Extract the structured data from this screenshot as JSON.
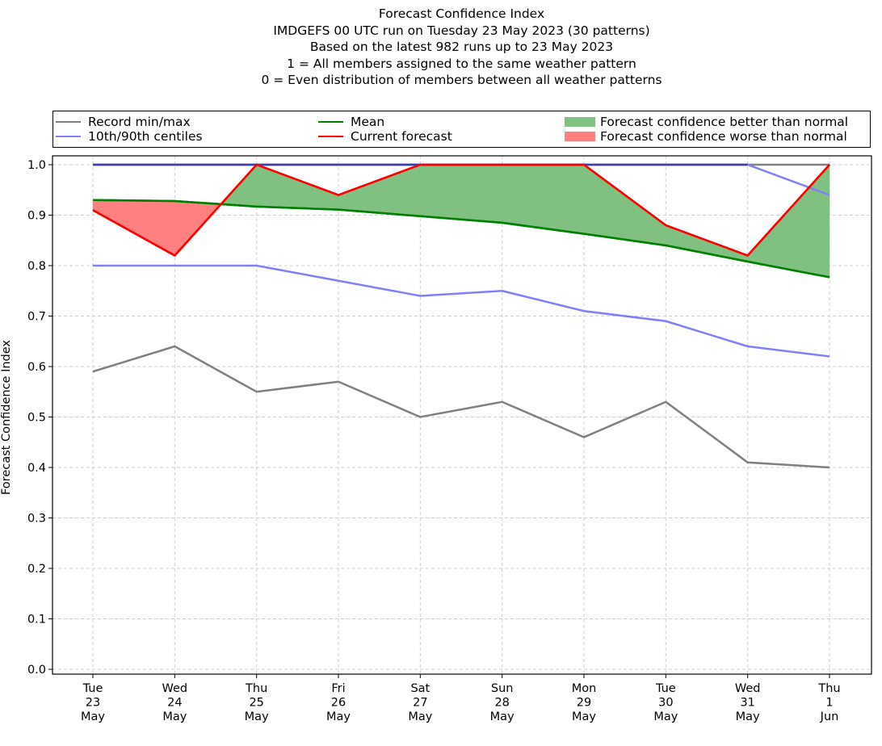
{
  "chart_data": {
    "type": "line",
    "title_lines": [
      "Forecast Confidence Index",
      "IMDGEFS 00 UTC run on Tuesday 23 May 2023 (30 patterns)",
      "Based on the latest 982 runs up to 23 May 2023",
      "1 = All members assigned to the same weather pattern",
      "0 = Even distribution of members between all weather patterns"
    ],
    "xlabel": "",
    "ylabel": "Forecast Confidence Index",
    "ylim": [
      0.0,
      1.0
    ],
    "yticks": [
      "0.0",
      "0.1",
      "0.2",
      "0.3",
      "0.4",
      "0.5",
      "0.6",
      "0.7",
      "0.8",
      "0.9",
      "1.0"
    ],
    "grid": true,
    "legend_position": "top (above plot, 3 columns)",
    "categories": [
      {
        "day": "Tue",
        "date": "23",
        "month": "May"
      },
      {
        "day": "Wed",
        "date": "24",
        "month": "May"
      },
      {
        "day": "Thu",
        "date": "25",
        "month": "May"
      },
      {
        "day": "Fri",
        "date": "26",
        "month": "May"
      },
      {
        "day": "Sat",
        "date": "27",
        "month": "May"
      },
      {
        "day": "Sun",
        "date": "28",
        "month": "May"
      },
      {
        "day": "Mon",
        "date": "29",
        "month": "May"
      },
      {
        "day": "Tue",
        "date": "30",
        "month": "May"
      },
      {
        "day": "Wed",
        "date": "31",
        "month": "May"
      },
      {
        "day": "Thu",
        "date": "1",
        "month": "Jun"
      }
    ],
    "series": [
      {
        "name": "Record min",
        "legend": "Record min/max",
        "color": "#808080",
        "values": [
          0.59,
          0.64,
          0.55,
          0.57,
          0.5,
          0.53,
          0.46,
          0.53,
          0.41,
          0.4
        ]
      },
      {
        "name": "Record max",
        "legend": "Record min/max",
        "color": "#808080",
        "values": [
          1.0,
          1.0,
          1.0,
          1.0,
          1.0,
          1.0,
          1.0,
          1.0,
          1.0,
          1.0
        ]
      },
      {
        "name": "10th centile",
        "legend": "10th/90th centiles",
        "color": "#8080ff",
        "values": [
          0.8,
          0.8,
          0.8,
          0.77,
          0.74,
          0.75,
          0.71,
          0.69,
          0.64,
          0.62
        ]
      },
      {
        "name": "90th centile",
        "legend": "10th/90th centiles",
        "color": "#3a3ac0",
        "values": [
          1.0,
          1.0,
          1.0,
          1.0,
          1.0,
          1.0,
          1.0,
          1.0,
          1.0,
          0.94
        ]
      },
      {
        "name": "Mean",
        "legend": "Mean",
        "color": "#008000",
        "values": [
          0.93,
          0.928,
          0.917,
          0.911,
          0.898,
          0.885,
          0.863,
          0.84,
          0.808,
          0.777
        ]
      },
      {
        "name": "Current forecast",
        "legend": "Current forecast",
        "color": "#ff0000",
        "values": [
          0.91,
          0.82,
          1.0,
          0.94,
          1.0,
          1.0,
          1.0,
          0.88,
          0.82,
          1.0
        ]
      }
    ],
    "fills": [
      {
        "name": "Forecast confidence better than normal",
        "color": "#80c080",
        "between": [
          "Current forecast",
          "Mean"
        ],
        "where": "forecast > mean"
      },
      {
        "name": "Forecast confidence worse than normal",
        "color": "#ff8080",
        "between": [
          "Current forecast",
          "Mean"
        ],
        "where": "forecast < mean"
      }
    ],
    "legend": [
      {
        "label": "Record min/max",
        "kind": "line",
        "color": "#808080"
      },
      {
        "label": "10th/90th centiles",
        "kind": "line",
        "color": "#8080ff"
      },
      {
        "label": "Mean",
        "kind": "line",
        "color": "#008000"
      },
      {
        "label": "Current forecast",
        "kind": "line",
        "color": "#ff0000"
      },
      {
        "label": "Forecast confidence better than normal",
        "kind": "patch",
        "color": "#80c080"
      },
      {
        "label": "Forecast confidence worse than normal",
        "kind": "patch",
        "color": "#ff8080"
      }
    ]
  }
}
